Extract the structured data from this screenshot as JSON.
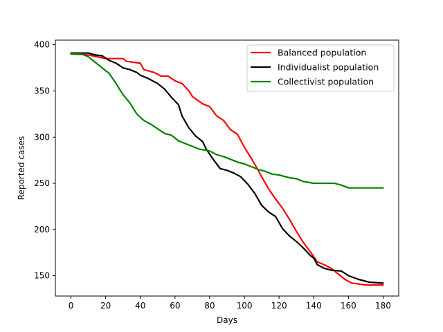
{
  "chart_data": {
    "type": "line",
    "title": "",
    "xlabel": "Days",
    "ylabel": "Reported cases",
    "xlim": [
      -9,
      189
    ],
    "ylim": [
      128,
      405
    ],
    "xticks": [
      0,
      20,
      40,
      60,
      80,
      100,
      120,
      140,
      160,
      180
    ],
    "yticks": [
      150,
      200,
      250,
      300,
      350,
      400
    ],
    "grid": false,
    "legend_position": "top-right",
    "series": [
      {
        "name": "Balanced population",
        "color": "#ff0000",
        "points": [
          [
            0,
            390
          ],
          [
            10,
            389
          ],
          [
            15,
            387
          ],
          [
            20,
            385
          ],
          [
            30,
            385
          ],
          [
            32,
            382
          ],
          [
            40,
            380
          ],
          [
            42,
            373
          ],
          [
            48,
            370
          ],
          [
            52,
            366
          ],
          [
            56,
            366
          ],
          [
            60,
            361
          ],
          [
            64,
            358
          ],
          [
            68,
            350
          ],
          [
            70,
            344
          ],
          [
            76,
            336
          ],
          [
            80,
            333
          ],
          [
            84,
            323
          ],
          [
            88,
            318
          ],
          [
            92,
            308
          ],
          [
            96,
            303
          ],
          [
            100,
            289
          ],
          [
            104,
            277
          ],
          [
            108,
            264
          ],
          [
            110,
            257
          ],
          [
            114,
            244
          ],
          [
            118,
            233
          ],
          [
            122,
            223
          ],
          [
            126,
            211
          ],
          [
            130,
            198
          ],
          [
            134,
            186
          ],
          [
            138,
            176
          ],
          [
            142,
            165
          ],
          [
            146,
            162
          ],
          [
            150,
            158
          ],
          [
            154,
            152
          ],
          [
            158,
            146
          ],
          [
            162,
            142
          ],
          [
            166,
            141
          ],
          [
            170,
            140
          ],
          [
            180,
            140
          ]
        ]
      },
      {
        "name": "Individualist population",
        "color": "#000000",
        "points": [
          [
            0,
            391
          ],
          [
            10,
            391
          ],
          [
            14,
            389
          ],
          [
            18,
            388
          ],
          [
            22,
            383
          ],
          [
            26,
            380
          ],
          [
            30,
            375
          ],
          [
            34,
            373
          ],
          [
            38,
            370
          ],
          [
            40,
            367
          ],
          [
            44,
            364
          ],
          [
            50,
            358
          ],
          [
            54,
            352
          ],
          [
            58,
            343
          ],
          [
            62,
            335
          ],
          [
            64,
            323
          ],
          [
            68,
            310
          ],
          [
            72,
            301
          ],
          [
            76,
            295
          ],
          [
            78,
            287
          ],
          [
            82,
            276
          ],
          [
            86,
            266
          ],
          [
            90,
            264
          ],
          [
            94,
            261
          ],
          [
            98,
            257
          ],
          [
            102,
            249
          ],
          [
            106,
            239
          ],
          [
            110,
            226
          ],
          [
            114,
            219
          ],
          [
            118,
            214
          ],
          [
            122,
            201
          ],
          [
            126,
            193
          ],
          [
            130,
            187
          ],
          [
            134,
            180
          ],
          [
            138,
            172
          ],
          [
            140,
            169
          ],
          [
            142,
            162
          ],
          [
            146,
            158
          ],
          [
            150,
            156
          ],
          [
            156,
            155
          ],
          [
            160,
            150
          ],
          [
            166,
            146
          ],
          [
            172,
            143
          ],
          [
            180,
            142
          ]
        ]
      },
      {
        "name": "Collectivist population",
        "color": "#008000",
        "points": [
          [
            0,
            390
          ],
          [
            6,
            390
          ],
          [
            10,
            387
          ],
          [
            14,
            381
          ],
          [
            18,
            375
          ],
          [
            22,
            369
          ],
          [
            26,
            358
          ],
          [
            30,
            346
          ],
          [
            34,
            337
          ],
          [
            38,
            325
          ],
          [
            42,
            318
          ],
          [
            46,
            314
          ],
          [
            50,
            309
          ],
          [
            54,
            304
          ],
          [
            58,
            302
          ],
          [
            62,
            296
          ],
          [
            66,
            293
          ],
          [
            70,
            290
          ],
          [
            74,
            287
          ],
          [
            80,
            285
          ],
          [
            84,
            281
          ],
          [
            88,
            279
          ],
          [
            92,
            276
          ],
          [
            96,
            273
          ],
          [
            100,
            271
          ],
          [
            104,
            268
          ],
          [
            108,
            265
          ],
          [
            112,
            263
          ],
          [
            116,
            260
          ],
          [
            120,
            259
          ],
          [
            126,
            256
          ],
          [
            130,
            255
          ],
          [
            134,
            252
          ],
          [
            140,
            250
          ],
          [
            146,
            250
          ],
          [
            152,
            250
          ],
          [
            156,
            248
          ],
          [
            160,
            245
          ],
          [
            166,
            245
          ],
          [
            172,
            245
          ],
          [
            180,
            245
          ]
        ]
      }
    ]
  }
}
